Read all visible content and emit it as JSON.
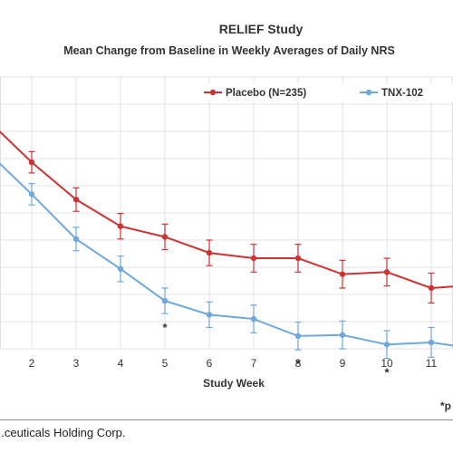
{
  "chart_data": {
    "type": "line",
    "title": "RELIEF Study",
    "subtitle": "Mean Change from Baseline in Weekly Averages of Daily NRS",
    "xlabel": "Study Week",
    "ylabel": "",
    "x": [
      1,
      2,
      3,
      4,
      5,
      6,
      7,
      8,
      9,
      10,
      11,
      12
    ],
    "x_tick_labels": [
      "2",
      "3",
      "4",
      "5",
      "6",
      "7",
      "8",
      "9",
      "10",
      "11"
    ],
    "xlim": [
      1.2,
      12.0
    ],
    "ylim": [
      -2.4,
      0.15
    ],
    "grid": true,
    "legend_position": "top-right",
    "series": [
      {
        "name": "Placebo (N=235)",
        "color": "#cc3333",
        "values": [
          -0.25,
          -0.65,
          -1.0,
          -1.25,
          -1.35,
          -1.5,
          -1.55,
          -1.55,
          -1.7,
          -1.68,
          -1.83,
          -1.8
        ],
        "error": [
          0.1,
          0.1,
          0.11,
          0.12,
          0.12,
          0.12,
          0.13,
          0.13,
          0.13,
          0.13,
          0.14,
          0.14
        ]
      },
      {
        "name": "TNX-102",
        "color": "#6ea8dc",
        "values": [
          -0.55,
          -0.95,
          -1.37,
          -1.65,
          -1.95,
          -2.08,
          -2.12,
          -2.28,
          -2.27,
          -2.36,
          -2.34,
          -2.4
        ],
        "error": [
          0.1,
          0.1,
          0.11,
          0.12,
          0.12,
          0.12,
          0.13,
          0.13,
          0.13,
          0.13,
          0.14,
          0.14
        ]
      }
    ],
    "significance_markers": [
      {
        "x": 5,
        "label": "*"
      },
      {
        "x": 8,
        "label": "*"
      },
      {
        "x": 10,
        "label": "*"
      }
    ],
    "footnote": "*p",
    "source": "...ceuticals Holding Corp."
  }
}
